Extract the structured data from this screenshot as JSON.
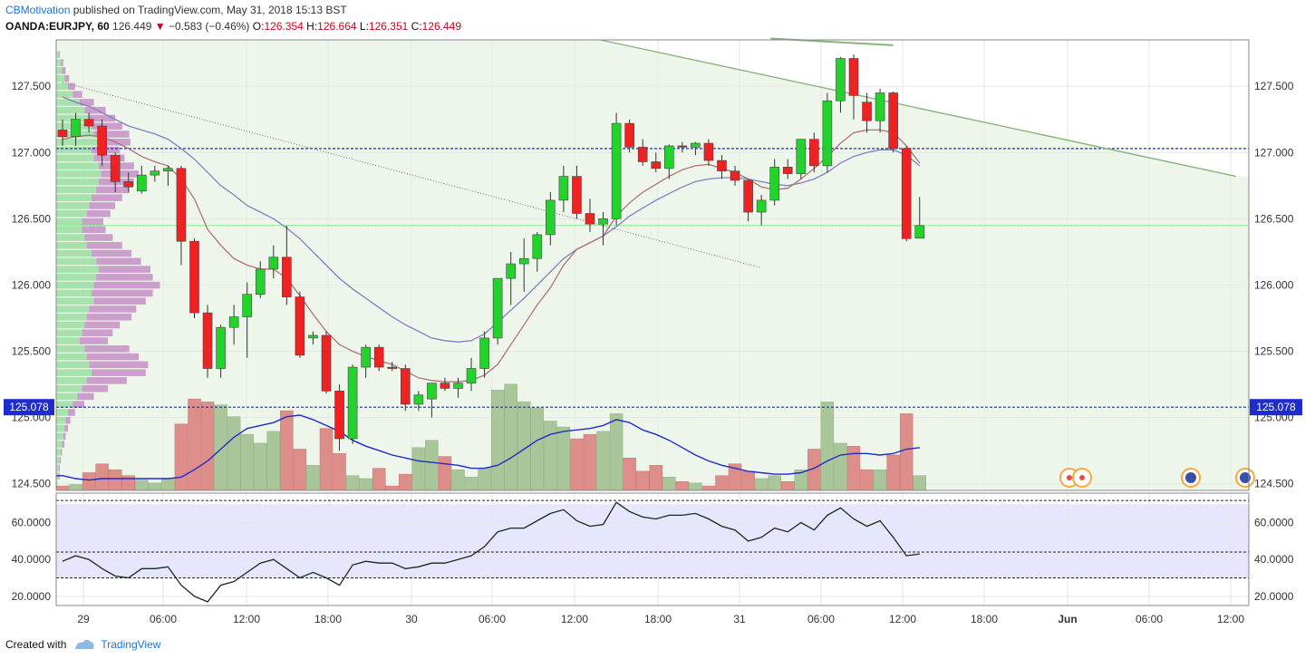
{
  "header": {
    "author": "CBMotivation",
    "published": "published on TradingView.com, May 31, 2018 15:13 BST",
    "symbol": "OANDA:EURJPY, 60",
    "last": "126.449",
    "arrow": "▼",
    "change": "−0.583 (−0.46%)",
    "o_label": "O:",
    "o": "126.354",
    "h_label": "H:",
    "h": "126.664",
    "l_label": "L:",
    "l": "126.351",
    "c_label": "C:",
    "c": "126.449"
  },
  "footer": {
    "created": "Created with",
    "brand": "TradingView"
  },
  "colors": {
    "up": "#22d32b",
    "down": "#ee2222",
    "vol_up": "#a9c69a",
    "vol_down": "#dd8e8a",
    "ma_fast": "#b0707a",
    "ma_slow": "#7f7fc0",
    "vol_ma": "#1f2bcc",
    "rsi_line": "#1a2a1a",
    "rsi_band": "#e6e6ff",
    "hline": "#1f2bcc",
    "trendline": "#88b37a",
    "channel_bg": "#eef6ec"
  },
  "chart_data": [
    {
      "type": "candlestick",
      "symbol": "OANDA:EURJPY, 60",
      "x_tick_labels": [
        "29",
        "06:00",
        "12:00",
        "18:00",
        "30",
        "06:00",
        "12:00",
        "18:00",
        "31",
        "06:00",
        "12:00",
        "18:00",
        "Jun",
        "06:00",
        "12:00"
      ],
      "y_tick_labels": [
        "127.500",
        "127.000",
        "126.500",
        "126.000",
        "125.500",
        "125.000",
        "124.500"
      ],
      "ylim": [
        124.45,
        127.85
      ],
      "horizontal_lines": [
        127.03,
        125.078,
        126.45
      ],
      "price_label": "125.078",
      "ohlc": [
        [
          127.17,
          127.25,
          127.05,
          127.12
        ],
        [
          127.12,
          127.3,
          127.05,
          127.25
        ],
        [
          127.25,
          127.3,
          127.15,
          127.2
        ],
        [
          127.2,
          127.25,
          126.9,
          126.98
        ],
        [
          126.98,
          127.0,
          126.7,
          126.78
        ],
        [
          126.78,
          126.85,
          126.7,
          126.74
        ],
        [
          126.71,
          126.9,
          126.69,
          126.83
        ],
        [
          126.83,
          126.9,
          126.78,
          126.86
        ],
        [
          126.86,
          126.9,
          126.75,
          126.88
        ],
        [
          126.88,
          126.9,
          126.15,
          126.33
        ],
        [
          126.33,
          126.35,
          125.75,
          125.79
        ],
        [
          125.79,
          125.85,
          125.3,
          125.37
        ],
        [
          125.37,
          125.7,
          125.3,
          125.68
        ],
        [
          125.68,
          125.85,
          125.55,
          125.76
        ],
        [
          125.76,
          126.02,
          125.45,
          125.93
        ],
        [
          125.93,
          126.18,
          125.9,
          126.12
        ],
        [
          126.12,
          126.3,
          126.05,
          126.21
        ],
        [
          126.21,
          126.45,
          125.85,
          125.91
        ],
        [
          125.91,
          125.95,
          125.45,
          125.47
        ],
        [
          125.6,
          125.65,
          125.55,
          125.62
        ],
        [
          125.62,
          125.65,
          125.18,
          125.2
        ],
        [
          125.2,
          125.25,
          124.75,
          124.84
        ],
        [
          124.84,
          125.4,
          124.8,
          125.38
        ],
        [
          125.38,
          125.55,
          125.3,
          125.53
        ],
        [
          125.53,
          125.55,
          125.35,
          125.38
        ],
        [
          125.38,
          125.42,
          125.35,
          125.37
        ],
        [
          125.37,
          125.4,
          125.05,
          125.1
        ],
        [
          125.1,
          125.2,
          125.05,
          125.17
        ],
        [
          125.14,
          125.25,
          125.0,
          125.26
        ],
        [
          125.26,
          125.3,
          125.2,
          125.22
        ],
        [
          125.22,
          125.3,
          125.15,
          125.26
        ],
        [
          125.26,
          125.45,
          125.2,
          125.37
        ],
        [
          125.37,
          125.65,
          125.3,
          125.6
        ],
        [
          125.6,
          126.05,
          125.55,
          126.05
        ],
        [
          126.05,
          126.25,
          125.85,
          126.16
        ],
        [
          126.16,
          126.35,
          125.95,
          126.2
        ],
        [
          126.2,
          126.4,
          126.1,
          126.38
        ],
        [
          126.38,
          126.7,
          126.3,
          126.64
        ],
        [
          126.64,
          126.9,
          126.55,
          126.82
        ],
        [
          126.82,
          126.9,
          126.5,
          126.54
        ],
        [
          126.54,
          126.65,
          126.4,
          126.46
        ],
        [
          126.46,
          126.55,
          126.3,
          126.5
        ],
        [
          126.5,
          127.3,
          126.45,
          127.22
        ],
        [
          127.22,
          127.25,
          127.0,
          127.04
        ],
        [
          127.04,
          127.1,
          126.9,
          126.93
        ],
        [
          126.93,
          127.0,
          126.85,
          126.88
        ],
        [
          126.88,
          127.06,
          126.8,
          127.05
        ],
        [
          127.05,
          127.08,
          127.0,
          127.04
        ],
        [
          127.04,
          127.08,
          126.98,
          127.07
        ],
        [
          127.07,
          127.1,
          126.9,
          126.94
        ],
        [
          126.94,
          126.98,
          126.8,
          126.86
        ],
        [
          126.86,
          126.9,
          126.75,
          126.79
        ],
        [
          126.79,
          126.8,
          126.48,
          126.55
        ],
        [
          126.55,
          126.68,
          126.45,
          126.64
        ],
        [
          126.64,
          126.95,
          126.6,
          126.89
        ],
        [
          126.89,
          126.95,
          126.8,
          126.84
        ],
        [
          126.84,
          127.1,
          126.8,
          127.1
        ],
        [
          127.1,
          127.15,
          126.85,
          126.9
        ],
        [
          126.9,
          127.45,
          126.85,
          127.39
        ],
        [
          127.39,
          127.72,
          127.3,
          127.71
        ],
        [
          127.71,
          127.74,
          127.25,
          127.43
        ],
        [
          127.38,
          127.45,
          127.15,
          127.24
        ],
        [
          127.24,
          127.48,
          127.15,
          127.45
        ],
        [
          127.45,
          127.46,
          127.0,
          127.03
        ],
        [
          127.03,
          127.05,
          126.33,
          126.35
        ],
        [
          126.354,
          126.664,
          126.351,
          126.449
        ]
      ],
      "ma_fast_values": [
        127.1,
        127.12,
        127.13,
        127.12,
        127.08,
        127.03,
        126.97,
        126.93,
        126.9,
        126.8,
        126.65,
        126.42,
        126.3,
        126.2,
        126.15,
        126.12,
        126.12,
        126.05,
        125.92,
        125.78,
        125.65,
        125.55,
        125.5,
        125.46,
        125.43,
        125.4,
        125.35,
        125.3,
        125.28,
        125.27,
        125.27,
        125.28,
        125.32,
        125.4,
        125.55,
        125.7,
        125.85,
        125.98,
        126.15,
        126.27,
        126.32,
        126.37,
        126.52,
        126.62,
        126.7,
        126.76,
        126.82,
        126.87,
        126.9,
        126.91,
        126.88,
        126.85,
        126.8,
        126.74,
        126.72,
        126.73,
        126.8,
        126.88,
        126.97,
        127.07,
        127.15,
        127.17,
        127.17,
        127.15,
        127.05,
        126.92
      ],
      "ma_slow_values": [
        127.42,
        127.38,
        127.35,
        127.3,
        127.25,
        127.2,
        127.17,
        127.14,
        127.1,
        127.03,
        126.95,
        126.85,
        126.75,
        126.68,
        126.6,
        126.55,
        126.5,
        126.43,
        126.35,
        126.25,
        126.15,
        126.05,
        125.97,
        125.9,
        125.83,
        125.76,
        125.7,
        125.65,
        125.6,
        125.58,
        125.57,
        125.58,
        125.63,
        125.72,
        125.81,
        125.9,
        126.0,
        126.1,
        126.2,
        126.27,
        126.32,
        126.37,
        126.44,
        126.52,
        126.58,
        126.64,
        126.69,
        126.74,
        126.78,
        126.8,
        126.81,
        126.81,
        126.8,
        126.78,
        126.76,
        126.75,
        126.77,
        126.8,
        126.85,
        126.92,
        126.97,
        127.0,
        127.02,
        127.02,
        126.98,
        126.9
      ],
      "volume_values": [
        3,
        4,
        12,
        18,
        14,
        10,
        7,
        5,
        8,
        45,
        62,
        60,
        58,
        50,
        38,
        32,
        40,
        54,
        28,
        17,
        42,
        25,
        10,
        8,
        15,
        3,
        11,
        29,
        34,
        23,
        14,
        9,
        15,
        68,
        72,
        60,
        56,
        47,
        43,
        35,
        38,
        40,
        52,
        22,
        13,
        17,
        9,
        6,
        5,
        3,
        10,
        18,
        13,
        8,
        10,
        6,
        14,
        28,
        60,
        32,
        30,
        14,
        14,
        24,
        52,
        10
      ],
      "volume_ma_values": [
        10,
        8,
        7,
        8,
        8,
        8,
        8,
        8,
        8,
        9,
        14,
        20,
        28,
        36,
        42,
        44,
        46,
        50,
        51,
        48,
        44,
        40,
        34,
        30,
        27,
        24,
        22,
        20,
        19,
        18,
        17,
        15,
        15,
        17,
        22,
        28,
        34,
        38,
        40,
        41,
        42,
        44,
        48,
        46,
        41,
        38,
        34,
        29,
        24,
        20,
        17,
        15,
        13,
        12,
        11,
        11,
        12,
        15,
        20,
        24,
        25,
        25,
        24,
        25,
        28,
        29
      ],
      "volume_profile": {
        "levels": [
          127.74,
          127.68,
          127.62,
          127.56,
          127.5,
          127.44,
          127.38,
          127.32,
          127.26,
          127.2,
          127.14,
          127.08,
          127.02,
          126.96,
          126.9,
          126.84,
          126.78,
          126.72,
          126.66,
          126.6,
          126.54,
          126.48,
          126.42,
          126.36,
          126.3,
          126.24,
          126.18,
          126.12,
          126.06,
          126.0,
          125.94,
          125.88,
          125.82,
          125.76,
          125.7,
          125.64,
          125.58,
          125.52,
          125.46,
          125.4,
          125.34,
          125.28,
          125.22,
          125.16,
          125.1,
          125.04,
          124.98,
          124.92,
          124.86,
          124.8,
          124.74,
          124.68,
          124.62,
          124.56,
          124.5
        ],
        "up": [
          2,
          4,
          5,
          7,
          10,
          14,
          20,
          24,
          28,
          30,
          32,
          35,
          30,
          32,
          36,
          38,
          36,
          34,
          30,
          28,
          26,
          22,
          22,
          24,
          26,
          30,
          34,
          36,
          34,
          32,
          30,
          32,
          28,
          26,
          24,
          22,
          20,
          24,
          26,
          28,
          30,
          26,
          22,
          18,
          14,
          10,
          8,
          7,
          6,
          5,
          4,
          3,
          2,
          2,
          1
        ],
        "down": [
          1,
          2,
          3,
          4,
          6,
          8,
          12,
          18,
          22,
          26,
          30,
          28,
          24,
          26,
          30,
          32,
          30,
          28,
          26,
          22,
          20,
          18,
          20,
          24,
          30,
          34,
          38,
          44,
          48,
          56,
          52,
          44,
          40,
          38,
          30,
          26,
          24,
          38,
          44,
          50,
          46,
          34,
          22,
          14,
          10,
          6,
          4,
          3,
          2,
          2,
          1,
          1,
          1,
          1,
          0
        ]
      },
      "trendlines": [
        {
          "style": "solid",
          "from": [
            40.8,
            127.85
          ],
          "to": [
            89.0,
            126.82
          ]
        },
        {
          "style": "solid",
          "from": [
            53.7,
            127.86
          ],
          "to": [
            63.0,
            127.81
          ]
        },
        {
          "style": "dotted",
          "from": [
            0,
            127.53
          ],
          "to": [
            53.0,
            126.13
          ]
        }
      ]
    },
    {
      "type": "line",
      "name": "RSI",
      "y_tick_labels": [
        "60.0000",
        "40.0000",
        "20.0000"
      ],
      "ylim": [
        15,
        76
      ],
      "band": [
        30,
        70
      ],
      "levels": [
        72,
        44,
        30
      ],
      "values": [
        39,
        42,
        40,
        35,
        31,
        30,
        35,
        35,
        36,
        26,
        20,
        17,
        26,
        28,
        33,
        38,
        40,
        35,
        30,
        33,
        30,
        26,
        37,
        39,
        38,
        38,
        35,
        36,
        38,
        38,
        40,
        42,
        47,
        55,
        57,
        57,
        61,
        65,
        67,
        61,
        58,
        59,
        71,
        66,
        63,
        62,
        64,
        64,
        65,
        62,
        58,
        56,
        50,
        52,
        57,
        55,
        60,
        56,
        64,
        68,
        62,
        58,
        61,
        52,
        42,
        43
      ]
    }
  ]
}
